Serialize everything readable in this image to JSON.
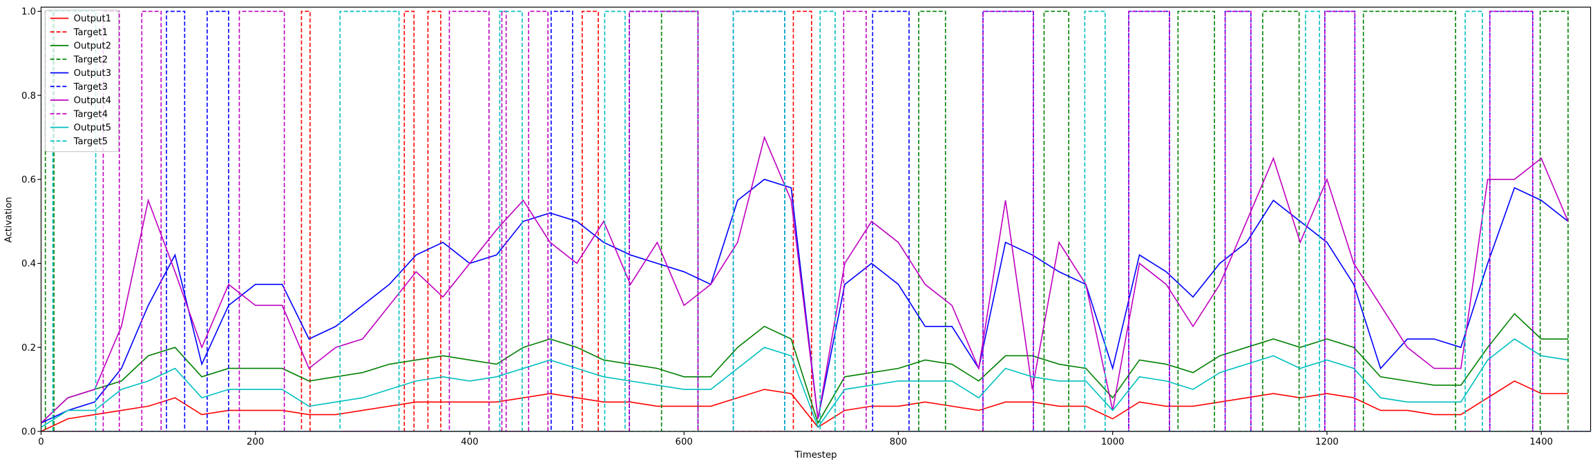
{
  "chart_data": {
    "type": "line",
    "x_label": "Timestep",
    "y_label": "Activation",
    "xlim": [
      0,
      1446
    ],
    "ylim": [
      0,
      1.01
    ],
    "xticks": [
      0,
      200,
      400,
      600,
      800,
      1000,
      1200,
      1400
    ],
    "yticks": [
      {
        "value": 0,
        "label": "0.0"
      },
      0.2,
      0.4,
      0.6,
      0.8,
      {
        "value": 1,
        "label": "1.0"
      }
    ],
    "legend": "upper left",
    "x": [
      0,
      25,
      50,
      75,
      100,
      125,
      150,
      175,
      200,
      225,
      250,
      275,
      300,
      325,
      350,
      375,
      400,
      425,
      450,
      475,
      500,
      525,
      550,
      575,
      600,
      625,
      650,
      675,
      700,
      725,
      750,
      775,
      800,
      825,
      850,
      875,
      900,
      925,
      950,
      975,
      1000,
      1025,
      1050,
      1075,
      1100,
      1125,
      1150,
      1175,
      1200,
      1225,
      1250,
      1275,
      1300,
      1325,
      1350,
      1375,
      1400,
      1425
    ],
    "series": [
      {
        "name": "Output1",
        "color": "#ff0000",
        "linestyle": "solid",
        "values": [
          0.0,
          0.03,
          0.04,
          0.05,
          0.06,
          0.08,
          0.04,
          0.05,
          0.05,
          0.05,
          0.04,
          0.04,
          0.05,
          0.06,
          0.07,
          0.07,
          0.07,
          0.07,
          0.08,
          0.09,
          0.08,
          0.07,
          0.07,
          0.06,
          0.06,
          0.06,
          0.08,
          0.1,
          0.09,
          0.01,
          0.05,
          0.06,
          0.06,
          0.07,
          0.06,
          0.05,
          0.07,
          0.07,
          0.06,
          0.06,
          0.03,
          0.07,
          0.06,
          0.06,
          0.07,
          0.08,
          0.09,
          0.08,
          0.09,
          0.08,
          0.05,
          0.05,
          0.04,
          0.04,
          0.08,
          0.12,
          0.09,
          0.09
        ]
      },
      {
        "name": "Target1",
        "color": "#ff0000",
        "linestyle": "dashed",
        "x": [
          0,
          243,
          243,
          251,
          251,
          339,
          339,
          348,
          348,
          361,
          361,
          373,
          373,
          505,
          505,
          520,
          520,
          702,
          702,
          719,
          719,
          1446
        ],
        "values": [
          0,
          0,
          1,
          1,
          0,
          0,
          1,
          1,
          0,
          0,
          1,
          1,
          0,
          0,
          1,
          1,
          0,
          0,
          1,
          1,
          0,
          0
        ]
      },
      {
        "name": "Output2",
        "color": "#008000",
        "linestyle": "solid",
        "values": [
          0.02,
          0.08,
          0.1,
          0.12,
          0.18,
          0.2,
          0.13,
          0.15,
          0.15,
          0.15,
          0.12,
          0.13,
          0.14,
          0.16,
          0.17,
          0.18,
          0.17,
          0.16,
          0.2,
          0.22,
          0.2,
          0.17,
          0.16,
          0.15,
          0.13,
          0.13,
          0.2,
          0.25,
          0.22,
          0.02,
          0.13,
          0.14,
          0.15,
          0.17,
          0.16,
          0.12,
          0.18,
          0.18,
          0.16,
          0.15,
          0.08,
          0.17,
          0.16,
          0.14,
          0.18,
          0.2,
          0.22,
          0.2,
          0.22,
          0.2,
          0.13,
          0.12,
          0.11,
          0.11,
          0.2,
          0.28,
          0.22,
          0.22
        ]
      },
      {
        "name": "Target2",
        "color": "#008000",
        "linestyle": "dashed",
        "x": [
          0,
          4,
          4,
          12,
          12,
          579,
          579,
          613,
          613,
          819,
          819,
          844,
          844,
          936,
          936,
          959,
          959,
          1061,
          1061,
          1095,
          1095,
          1140,
          1140,
          1174,
          1174,
          1234,
          1234,
          1320,
          1320,
          1399,
          1399,
          1425,
          1425,
          1446
        ],
        "values": [
          0,
          0,
          1,
          1,
          0,
          0,
          1,
          1,
          0,
          0,
          1,
          1,
          0,
          0,
          1,
          1,
          0,
          0,
          1,
          1,
          0,
          0,
          1,
          1,
          0,
          0,
          1,
          1,
          0,
          0,
          1,
          1,
          0,
          0
        ]
      },
      {
        "name": "Output3",
        "color": "#0000ff",
        "linestyle": "solid",
        "values": [
          0.02,
          0.05,
          0.07,
          0.15,
          0.3,
          0.42,
          0.16,
          0.3,
          0.35,
          0.35,
          0.22,
          0.25,
          0.3,
          0.35,
          0.42,
          0.45,
          0.4,
          0.42,
          0.5,
          0.52,
          0.5,
          0.45,
          0.42,
          0.4,
          0.38,
          0.35,
          0.55,
          0.6,
          0.58,
          0.03,
          0.35,
          0.4,
          0.35,
          0.25,
          0.25,
          0.15,
          0.45,
          0.42,
          0.38,
          0.35,
          0.15,
          0.42,
          0.38,
          0.32,
          0.4,
          0.45,
          0.55,
          0.5,
          0.45,
          0.35,
          0.15,
          0.22,
          0.22,
          0.2,
          0.4,
          0.58,
          0.55,
          0.5
        ]
      },
      {
        "name": "Target3",
        "color": "#0000ff",
        "linestyle": "dashed",
        "x": [
          0,
          117,
          117,
          134,
          134,
          155,
          155,
          175,
          175,
          476,
          476,
          496,
          496,
          549,
          549,
          613,
          613,
          646,
          646,
          694,
          694,
          776,
          776,
          810,
          810,
          879,
          879,
          926,
          926,
          1015,
          1015,
          1053,
          1053,
          1105,
          1105,
          1129,
          1129,
          1198,
          1198,
          1226,
          1226,
          1352,
          1352,
          1392,
          1392,
          1446
        ],
        "values": [
          0,
          0,
          1,
          1,
          0,
          0,
          1,
          1,
          0,
          0,
          1,
          1,
          0,
          0,
          1,
          1,
          0,
          0,
          1,
          1,
          0,
          0,
          1,
          1,
          0,
          0,
          1,
          1,
          0,
          0,
          1,
          1,
          0,
          0,
          1,
          1,
          0,
          0,
          1,
          1,
          0,
          0,
          1,
          1,
          0,
          0
        ]
      },
      {
        "name": "Output4",
        "color": "#bf00bf",
        "linestyle": "solid",
        "values": [
          0.02,
          0.08,
          0.1,
          0.25,
          0.55,
          0.38,
          0.2,
          0.35,
          0.3,
          0.3,
          0.15,
          0.2,
          0.22,
          0.3,
          0.38,
          0.32,
          0.4,
          0.48,
          0.55,
          0.45,
          0.4,
          0.5,
          0.35,
          0.45,
          0.3,
          0.35,
          0.45,
          0.7,
          0.55,
          0.03,
          0.4,
          0.5,
          0.45,
          0.35,
          0.3,
          0.15,
          0.55,
          0.1,
          0.45,
          0.35,
          0.05,
          0.4,
          0.35,
          0.25,
          0.35,
          0.5,
          0.65,
          0.45,
          0.6,
          0.4,
          0.3,
          0.2,
          0.15,
          0.15,
          0.6,
          0.6,
          0.65,
          0.5
        ]
      },
      {
        "name": "Target4",
        "color": "#bf00bf",
        "linestyle": "dashed",
        "x": [
          0,
          58,
          58,
          73,
          73,
          94,
          94,
          112,
          112,
          185,
          185,
          227,
          227,
          381,
          381,
          418,
          418,
          430,
          430,
          434,
          434,
          455,
          455,
          473,
          473,
          549,
          549,
          613,
          613,
          749,
          749,
          770,
          770,
          879,
          879,
          926,
          926,
          1015,
          1015,
          1053,
          1053,
          1105,
          1105,
          1129,
          1129,
          1198,
          1198,
          1226,
          1226,
          1352,
          1352,
          1392,
          1392,
          1446
        ],
        "values": [
          0,
          0,
          1,
          1,
          0,
          0,
          1,
          1,
          0,
          0,
          1,
          1,
          0,
          0,
          1,
          1,
          0,
          0,
          1,
          1,
          0,
          0,
          1,
          1,
          0,
          0,
          1,
          1,
          0,
          0,
          1,
          1,
          0,
          0,
          1,
          1,
          0,
          0,
          1,
          1,
          0,
          0,
          1,
          1,
          0,
          0,
          1,
          1,
          0,
          0,
          1,
          1,
          0,
          0
        ]
      },
      {
        "name": "Output5",
        "color": "#00bfbf",
        "linestyle": "solid",
        "values": [
          0.01,
          0.05,
          0.05,
          0.1,
          0.12,
          0.15,
          0.08,
          0.1,
          0.1,
          0.1,
          0.06,
          0.07,
          0.08,
          0.1,
          0.12,
          0.13,
          0.12,
          0.13,
          0.15,
          0.17,
          0.15,
          0.13,
          0.12,
          0.11,
          0.1,
          0.1,
          0.15,
          0.2,
          0.18,
          0.01,
          0.1,
          0.11,
          0.12,
          0.12,
          0.12,
          0.08,
          0.15,
          0.13,
          0.12,
          0.12,
          0.05,
          0.13,
          0.12,
          0.1,
          0.14,
          0.16,
          0.18,
          0.15,
          0.17,
          0.15,
          0.08,
          0.07,
          0.07,
          0.07,
          0.17,
          0.22,
          0.18,
          0.17
        ]
      },
      {
        "name": "Target5",
        "color": "#00bfbf",
        "linestyle": "dashed",
        "x": [
          0,
          11,
          11,
          51,
          51,
          279,
          279,
          334,
          334,
          428,
          428,
          449,
          449,
          526,
          526,
          545,
          545,
          646,
          646,
          694,
          694,
          727,
          727,
          741,
          741,
          974,
          974,
          993,
          993,
          1180,
          1180,
          1193,
          1193,
          1329,
          1329,
          1345,
          1345,
          1446
        ],
        "values": [
          0,
          0,
          1,
          1,
          0,
          0,
          1,
          1,
          0,
          0,
          1,
          1,
          0,
          0,
          1,
          1,
          0,
          0,
          1,
          1,
          0,
          0,
          1,
          1,
          0,
          0,
          1,
          1,
          0,
          0,
          1,
          1,
          0,
          0,
          1,
          1,
          0,
          0
        ]
      }
    ]
  }
}
